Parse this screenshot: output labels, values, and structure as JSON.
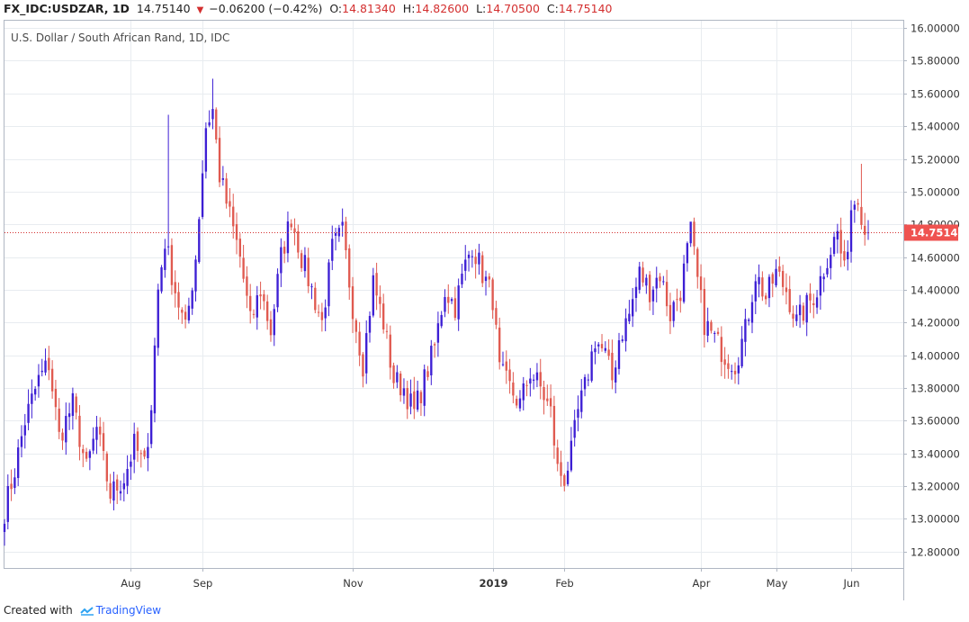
{
  "header": {
    "symbol": "FX_IDC:USDZAR, 1D",
    "last": "14.75140",
    "change": "−0.06200 (−0.42%)",
    "open_label": "O:",
    "open": "14.81340",
    "high_label": "H:",
    "high": "14.82600",
    "low_label": "L:",
    "low": "14.70500",
    "close_label": "C:",
    "close": "14.75140"
  },
  "footer": {
    "created_with": "Created with",
    "brand": "TradingView"
  },
  "colors": {
    "up": "#3d1fd4",
    "down": "#e05a50",
    "grid": "#e8ecf0",
    "price_line": "#d32f2f",
    "price_label_bg": "#ef5350"
  },
  "chart_data": {
    "type": "candlestick",
    "title": "U.S. Dollar / South African Rand, 1D, IDC",
    "y_ticks": [
      "16.00000",
      "15.80000",
      "15.60000",
      "15.40000",
      "15.20000",
      "15.00000",
      "14.80000",
      "14.60000",
      "14.40000",
      "14.20000",
      "14.00000",
      "13.80000",
      "13.60000",
      "13.40000",
      "13.20000",
      "13.00000",
      "12.80000"
    ],
    "ylim": [
      12.7,
      16.05
    ],
    "x_ticks": [
      {
        "label": "Aug",
        "index": 37
      },
      {
        "label": "Sep",
        "index": 58
      },
      {
        "label": "Nov",
        "index": 102
      },
      {
        "label": "2019",
        "index": 143
      },
      {
        "label": "Feb",
        "index": 164
      },
      {
        "label": "Apr",
        "index": 204
      },
      {
        "label": "May",
        "index": 226
      },
      {
        "label": "Jun",
        "index": 248
      }
    ],
    "grid": true,
    "current_price": 14.7514,
    "current_price_label": "14.75140",
    "anchors": [
      [
        0,
        13.05
      ],
      [
        3,
        13.3
      ],
      [
        6,
        13.6
      ],
      [
        10,
        13.85
      ],
      [
        13,
        13.95
      ],
      [
        16,
        13.5
      ],
      [
        20,
        13.7
      ],
      [
        24,
        13.3
      ],
      [
        27,
        13.55
      ],
      [
        31,
        13.15
      ],
      [
        35,
        13.25
      ],
      [
        38,
        13.45
      ],
      [
        41,
        13.32
      ],
      [
        43,
        13.7
      ],
      [
        45,
        14.4
      ],
      [
        47,
        14.7
      ],
      [
        50,
        14.4
      ],
      [
        53,
        14.15
      ],
      [
        56,
        14.6
      ],
      [
        59,
        15.4
      ],
      [
        61,
        15.5
      ],
      [
        63,
        15.1
      ],
      [
        66,
        14.85
      ],
      [
        69,
        14.6
      ],
      [
        72,
        14.2
      ],
      [
        75,
        14.4
      ],
      [
        78,
        14.15
      ],
      [
        81,
        14.6
      ],
      [
        84,
        14.85
      ],
      [
        87,
        14.6
      ],
      [
        90,
        14.4
      ],
      [
        93,
        14.2
      ],
      [
        96,
        14.65
      ],
      [
        99,
        14.75
      ],
      [
        102,
        14.3
      ],
      [
        105,
        13.95
      ],
      [
        108,
        14.45
      ],
      [
        111,
        14.2
      ],
      [
        114,
        13.85
      ],
      [
        117,
        13.8
      ],
      [
        120,
        13.65
      ],
      [
        123,
        13.85
      ],
      [
        126,
        14.05
      ],
      [
        129,
        14.4
      ],
      [
        132,
        14.3
      ],
      [
        135,
        14.55
      ],
      [
        137,
        14.68
      ],
      [
        140,
        14.5
      ],
      [
        143,
        14.35
      ],
      [
        145,
        13.9
      ],
      [
        148,
        13.8
      ],
      [
        151,
        13.7
      ],
      [
        154,
        13.9
      ],
      [
        157,
        13.8
      ],
      [
        160,
        13.65
      ],
      [
        162,
        13.3
      ],
      [
        164,
        13.25
      ],
      [
        166,
        13.4
      ],
      [
        168,
        13.65
      ],
      [
        170,
        13.8
      ],
      [
        173,
        14.1
      ],
      [
        176,
        14.0
      ],
      [
        178,
        13.85
      ],
      [
        180,
        14.1
      ],
      [
        183,
        14.25
      ],
      [
        186,
        14.5
      ],
      [
        189,
        14.4
      ],
      [
        192,
        14.5
      ],
      [
        195,
        14.25
      ],
      [
        198,
        14.4
      ],
      [
        201,
        14.75
      ],
      [
        203,
        14.45
      ],
      [
        205,
        14.2
      ],
      [
        208,
        14.1
      ],
      [
        211,
        14.0
      ],
      [
        214,
        13.95
      ],
      [
        217,
        14.15
      ],
      [
        220,
        14.5
      ],
      [
        223,
        14.35
      ],
      [
        226,
        14.5
      ],
      [
        229,
        14.4
      ],
      [
        232,
        14.2
      ],
      [
        235,
        14.3
      ],
      [
        238,
        14.4
      ],
      [
        241,
        14.6
      ],
      [
        244,
        14.75
      ],
      [
        246,
        14.5
      ],
      [
        248,
        14.9
      ],
      [
        250,
        15.0
      ],
      [
        252,
        14.75
      ]
    ]
  }
}
